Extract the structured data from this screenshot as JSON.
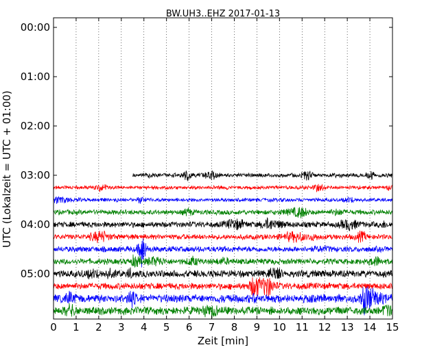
{
  "chart_data": {
    "type": "line",
    "title": "BW.UH3..EHZ 2017-01-13",
    "xlabel": "Zeit  [min]",
    "ylabel": "UTC (Lokalzeit = UTC + 01:00)",
    "xlim": [
      0,
      15
    ],
    "x_ticks": [
      "0",
      "1",
      "2",
      "3",
      "4",
      "5",
      "6",
      "7",
      "8",
      "9",
      "10",
      "11",
      "12",
      "13",
      "14",
      "15"
    ],
    "y_ticks": [
      "00:00",
      "01:00",
      "02:00",
      "03:00",
      "04:00",
      "05:00"
    ],
    "grid": "vertical dotted",
    "trace_colors": [
      "#000000",
      "#ff0000",
      "#0000ff",
      "#008000"
    ],
    "series": [
      {
        "row_start": "03:00",
        "x_start": 3.5,
        "x_end": 15,
        "color": "#000000",
        "amplitude": 0.5
      },
      {
        "row_start": "03:15",
        "x_start": 0,
        "x_end": 15,
        "color": "#ff0000",
        "amplitude": 0.45
      },
      {
        "row_start": "03:30",
        "x_start": 0,
        "x_end": 15,
        "color": "#0000ff",
        "amplitude": 0.45
      },
      {
        "row_start": "03:45",
        "x_start": 0,
        "x_end": 15,
        "color": "#008000",
        "amplitude": 0.6
      },
      {
        "row_start": "04:00",
        "x_start": 0,
        "x_end": 15,
        "color": "#000000",
        "amplitude": 0.7
      },
      {
        "row_start": "04:15",
        "x_start": 0,
        "x_end": 15,
        "color": "#ff0000",
        "amplitude": 0.65
      },
      {
        "row_start": "04:30",
        "x_start": 0,
        "x_end": 15,
        "color": "#0000ff",
        "amplitude": 0.7
      },
      {
        "row_start": "04:45",
        "x_start": 0,
        "x_end": 15,
        "color": "#008000",
        "amplitude": 0.7
      },
      {
        "row_start": "05:00",
        "x_start": 0,
        "x_end": 15,
        "color": "#000000",
        "amplitude": 0.85
      },
      {
        "row_start": "05:15",
        "x_start": 0,
        "x_end": 15,
        "color": "#ff0000",
        "amplitude": 0.8
      },
      {
        "row_start": "05:30",
        "x_start": 0,
        "x_end": 15,
        "color": "#0000ff",
        "amplitude": 1.0
      },
      {
        "row_start": "05:45",
        "x_start": 0,
        "x_end": 15,
        "color": "#008000",
        "amplitude": 0.95
      }
    ]
  }
}
